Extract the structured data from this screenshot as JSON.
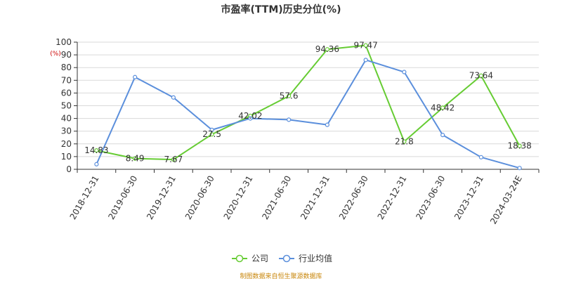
{
  "chart_data": {
    "type": "line",
    "title": "市盈率(TTM)历史分位(%)",
    "unit": "(%)",
    "categories": [
      "2018-12-31",
      "2019-06-30",
      "2019-12-31",
      "2020-06-30",
      "2020-12-31",
      "2021-06-30",
      "2021-12-31",
      "2022-06-30",
      "2022-12-31",
      "2023-06-30",
      "2023-12-31",
      "2024-03-24E"
    ],
    "ylim": [
      0,
      100
    ],
    "yticks": [
      0,
      10,
      20,
      30,
      40,
      50,
      60,
      70,
      80,
      90,
      100
    ],
    "grid": true,
    "legend_position": "bottom",
    "series": [
      {
        "name": "公司",
        "color": "#66cc33",
        "values": [
          14.83,
          8.49,
          7.67,
          27.5,
          42.02,
          57.6,
          94.36,
          97.47,
          21.8,
          48.42,
          73.64,
          18.38
        ],
        "labels": [
          "14.83",
          "8.49",
          "7.67",
          "27.5",
          "42.02",
          "57.6",
          "94.36",
          "97.47",
          "21.8",
          "48.42",
          "73.64",
          "18.38"
        ]
      },
      {
        "name": "行业均值",
        "color": "#5b8fdc",
        "values": [
          4,
          72.5,
          56.5,
          31,
          40,
          39,
          35,
          86,
          76.5,
          27,
          9.5,
          1
        ]
      }
    ]
  },
  "source": "制图数据来自恒生聚源数据库"
}
